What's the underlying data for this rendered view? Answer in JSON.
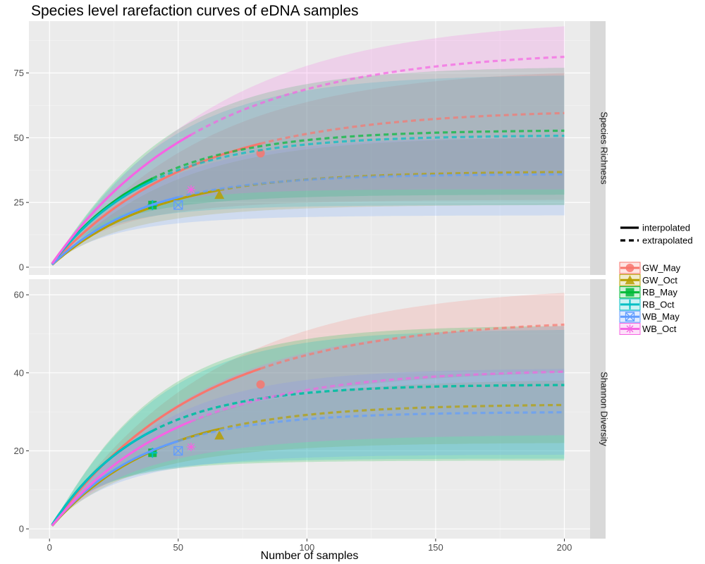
{
  "chart_data": {
    "type": "line",
    "title": "Species level rarefaction curves of eDNA samples",
    "xlabel": "Number of samples",
    "xlim": [
      -8,
      210
    ],
    "x_ticks": [
      0,
      50,
      100,
      150,
      200
    ],
    "legend_position": "right",
    "linetype_legend": [
      {
        "label": "interpolated",
        "style": "solid"
      },
      {
        "label": "extrapolated",
        "style": "dashed"
      }
    ],
    "series_styles": [
      {
        "name": "GW_May",
        "color": "#F8766D",
        "shape": "circle"
      },
      {
        "name": "GW_Oct",
        "color": "#B79F00",
        "shape": "triangle"
      },
      {
        "name": "RB_May",
        "color": "#00BA38",
        "shape": "square"
      },
      {
        "name": "RB_Oct",
        "color": "#00BFC4",
        "shape": "plus"
      },
      {
        "name": "WB_May",
        "color": "#619CFF",
        "shape": "square-cross"
      },
      {
        "name": "WB_Oct",
        "color": "#F564E3",
        "shape": "asterisk"
      }
    ],
    "panels": [
      {
        "strip": "Species Richness",
        "ylim": [
          -3,
          95
        ],
        "y_ticks": [
          0,
          25,
          50,
          75
        ],
        "series": [
          {
            "name": "GW_May",
            "n_obs": 82,
            "obs": 44,
            "max": 61,
            "lower_end": 26,
            "upper_end": 75
          },
          {
            "name": "GW_Oct",
            "n_obs": 66,
            "obs": 28,
            "max": 37,
            "lower_end": 24,
            "upper_end": 50
          },
          {
            "name": "RB_May",
            "n_obs": 40,
            "obs": 24,
            "max": 53,
            "lower_end": 28,
            "upper_end": 77
          },
          {
            "name": "RB_Oct",
            "n_obs": 40,
            "obs": 24,
            "max": 51,
            "lower_end": 24,
            "upper_end": 74
          },
          {
            "name": "WB_May",
            "n_obs": 50,
            "obs": 24,
            "max": 36,
            "lower_end": 20,
            "upper_end": 50
          },
          {
            "name": "WB_Oct",
            "n_obs": 55,
            "obs": 30,
            "max": 84,
            "lower_end": 30,
            "upper_end": 93
          }
        ]
      },
      {
        "strip": "Shannon Diversity",
        "ylim": [
          -2.5,
          64
        ],
        "y_ticks": [
          0,
          20,
          40,
          60
        ],
        "series": [
          {
            "name": "GW_May",
            "n_obs": 82,
            "obs": 37,
            "max": 54,
            "lower_end": 40,
            "upper_end": 60.5
          },
          {
            "name": "GW_Oct",
            "n_obs": 66,
            "obs": 24,
            "max": 32,
            "lower_end": 22,
            "upper_end": 38
          },
          {
            "name": "RB_May",
            "n_obs": 40,
            "obs": 19.5,
            "max": 37,
            "lower_end": 17.5,
            "upper_end": 52
          },
          {
            "name": "RB_Oct",
            "n_obs": 40,
            "obs": 19.5,
            "max": 37,
            "lower_end": 18,
            "upper_end": 51
          },
          {
            "name": "WB_May",
            "n_obs": 50,
            "obs": 20,
            "max": 30,
            "lower_end": 19,
            "upper_end": 41
          },
          {
            "name": "WB_Oct",
            "n_obs": 55,
            "obs": 21,
            "max": 41,
            "lower_end": 24,
            "upper_end": 52
          }
        ]
      }
    ]
  }
}
